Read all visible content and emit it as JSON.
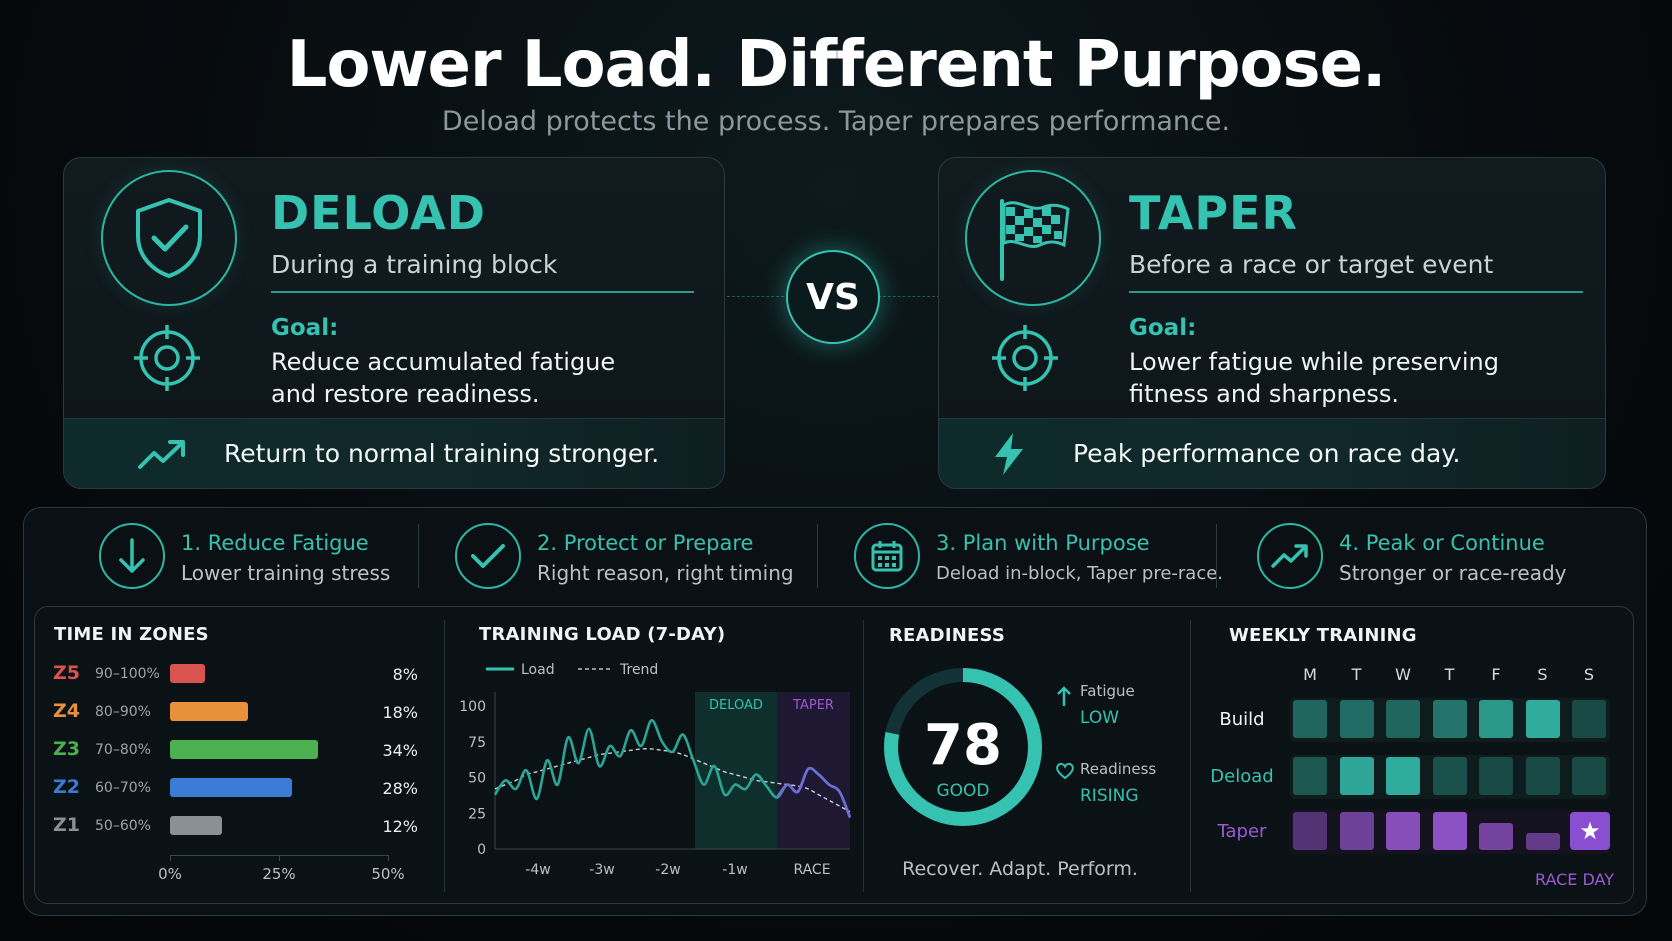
{
  "header": {
    "title": "Lower Load. Different Purpose.",
    "subtitle": "Deload protects the process. Taper prepares performance."
  },
  "deload": {
    "name": "DELOAD",
    "when": "During a training block",
    "goal_label": "Goal:",
    "goal_line1": "Reduce accumulated fatigue",
    "goal_line2": "and restore readiness.",
    "outcome": "Return to normal training stronger.",
    "icon": "shield-check-icon"
  },
  "taper": {
    "name": "TAPER",
    "when": "Before a race or target event",
    "goal_label": "Goal:",
    "goal_line1": "Lower fatigue while preserving",
    "goal_line2": "fitness and sharpness.",
    "outcome": "Peak performance on race day.",
    "icon": "checkered-flag-icon"
  },
  "vs_label": "VS",
  "steps": [
    {
      "title": "1. Reduce Fatigue",
      "sub": "Lower training stress",
      "icon": "arrow-down-icon"
    },
    {
      "title": "2. Protect or Prepare",
      "sub": "Right reason, right timing",
      "icon": "check-icon"
    },
    {
      "title": "3. Plan with Purpose",
      "sub": "Deload in-block, Taper pre-race.",
      "icon": "calendar-icon"
    },
    {
      "title": "4. Peak or Continue",
      "sub": "Stronger or race-ready",
      "icon": "trend-up-icon"
    }
  ],
  "zones": {
    "title": "TIME IN ZONES",
    "rows": [
      {
        "zone": "Z5",
        "range": "90–100%",
        "pct": "8%",
        "value": 8,
        "color": "#d9534f"
      },
      {
        "zone": "Z4",
        "range": "80–90%",
        "pct": "18%",
        "value": 18,
        "color": "#e8913a"
      },
      {
        "zone": "Z3",
        "range": "70–80%",
        "pct": "34%",
        "value": 34,
        "color": "#4caf50"
      },
      {
        "zone": "Z2",
        "range": "60–70%",
        "pct": "28%",
        "value": 28,
        "color": "#3b7bd6"
      },
      {
        "zone": "Z1",
        "range": "50–60%",
        "pct": "12%",
        "value": 12,
        "color": "#8a9094"
      }
    ],
    "axis": [
      "0%",
      "25%",
      "50%"
    ],
    "max": 50
  },
  "chart_data": {
    "type": "line",
    "title": "TRAINING LOAD (7-DAY)",
    "legend": [
      "Load",
      "Trend"
    ],
    "x_ticks": [
      "-4w",
      "-3w",
      "-2w",
      "-1w",
      "RACE"
    ],
    "y_ticks": [
      "100",
      "75",
      "50",
      "25",
      "0"
    ],
    "ylim": [
      0,
      100
    ],
    "regions": [
      "DELOAD",
      "TAPER"
    ],
    "series": [
      {
        "name": "Load",
        "values": [
          38,
          48,
          42,
          55,
          35,
          62,
          45,
          78,
          60,
          84,
          58,
          72,
          65,
          83,
          72,
          90,
          75,
          68,
          80,
          62,
          45,
          58,
          38,
          45,
          42,
          52,
          44,
          36,
          45,
          40,
          56,
          52,
          45,
          40,
          22
        ]
      },
      {
        "name": "Trend",
        "values": [
          42,
          45,
          48,
          52,
          54,
          56,
          58,
          60,
          62,
          64,
          66,
          67,
          68,
          69,
          70,
          70,
          69,
          68,
          66,
          63,
          60,
          57,
          54,
          52,
          50,
          48,
          47,
          46,
          45,
          44,
          42,
          38,
          34,
          30,
          26
        ]
      }
    ]
  },
  "readiness": {
    "title": "READINESS",
    "score": "78",
    "score_value": 78,
    "status": "GOOD",
    "fatigue_label": "Fatigue",
    "fatigue_value": "LOW",
    "readiness_label": "Readiness",
    "readiness_value": "RISING",
    "tagline": "Recover. Adapt. Perform."
  },
  "weekly": {
    "title": "WEEKLY TRAINING",
    "days": [
      "M",
      "T",
      "W",
      "T",
      "F",
      "S",
      "S"
    ],
    "rows": [
      {
        "label": "Build",
        "intensity": [
          0.35,
          0.4,
          0.35,
          0.45,
          0.7,
          0.85,
          0.15
        ]
      },
      {
        "label": "Deload",
        "intensity": [
          0.25,
          0.8,
          0.85,
          0.2,
          0.15,
          0.15,
          0.15
        ]
      },
      {
        "label": "Taper",
        "intensity": [
          0.3,
          0.55,
          0.8,
          0.85,
          0.6,
          0.45,
          1.0
        ]
      }
    ],
    "race_day": "RACE DAY"
  },
  "colors": {
    "teal": "#36c2b0",
    "purple": "#9b59d6"
  }
}
